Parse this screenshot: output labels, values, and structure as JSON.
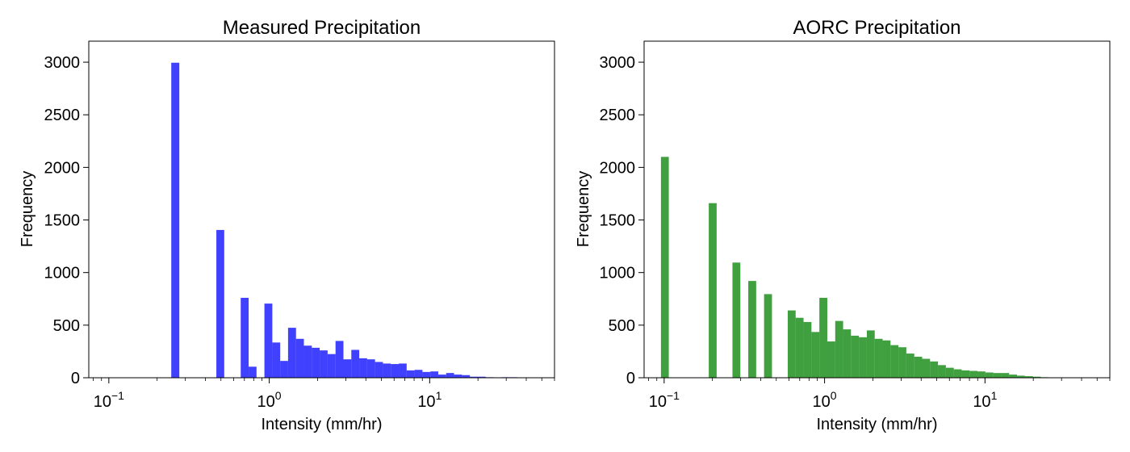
{
  "chart_data": [
    {
      "type": "bar",
      "title": "Measured Precipitation",
      "xlabel": "Intensity (mm/hr)",
      "ylabel": "Frequency",
      "xscale": "log",
      "xlim": [
        0.075,
        60
      ],
      "ylim": [
        0,
        3200
      ],
      "grid": false,
      "color": "#0000ff",
      "x_ticks": [
        {
          "base": "10",
          "exp": "−1",
          "value": 0.1
        },
        {
          "base": "10",
          "exp": "0",
          "value": 1
        },
        {
          "base": "10",
          "exp": "1",
          "value": 10
        }
      ],
      "y_ticks": [
        "0",
        "500",
        "1000",
        "1500",
        "2000",
        "2500",
        "3000"
      ],
      "bins": [
        {
          "x0": 0.245,
          "x1": 0.275,
          "value": 2995
        },
        {
          "x0": 0.468,
          "x1": 0.524,
          "value": 1405
        },
        {
          "x0": 0.664,
          "x1": 0.744,
          "value": 760
        },
        {
          "x0": 0.744,
          "x1": 0.833,
          "value": 105
        },
        {
          "x0": 0.933,
          "x1": 1.045,
          "value": 705
        },
        {
          "x0": 1.045,
          "x1": 1.17,
          "value": 335
        },
        {
          "x0": 1.17,
          "x1": 1.31,
          "value": 160
        },
        {
          "x0": 1.31,
          "x1": 1.468,
          "value": 475
        },
        {
          "x0": 1.468,
          "x1": 1.644,
          "value": 370
        },
        {
          "x0": 1.644,
          "x1": 1.842,
          "value": 305
        },
        {
          "x0": 1.842,
          "x1": 2.063,
          "value": 285
        },
        {
          "x0": 2.063,
          "x1": 2.311,
          "value": 260
        },
        {
          "x0": 2.311,
          "x1": 2.589,
          "value": 225
        },
        {
          "x0": 2.589,
          "x1": 2.9,
          "value": 350
        },
        {
          "x0": 2.9,
          "x1": 3.248,
          "value": 175
        },
        {
          "x0": 3.248,
          "x1": 3.638,
          "value": 265
        },
        {
          "x0": 3.638,
          "x1": 4.075,
          "value": 185
        },
        {
          "x0": 4.075,
          "x1": 4.565,
          "value": 175
        },
        {
          "x0": 4.565,
          "x1": 5.113,
          "value": 150
        },
        {
          "x0": 5.113,
          "x1": 5.727,
          "value": 135
        },
        {
          "x0": 5.727,
          "x1": 6.415,
          "value": 130
        },
        {
          "x0": 6.415,
          "x1": 7.186,
          "value": 135
        },
        {
          "x0": 7.186,
          "x1": 8.049,
          "value": 70
        },
        {
          "x0": 8.049,
          "x1": 9.016,
          "value": 75
        },
        {
          "x0": 9.016,
          "x1": 10.1,
          "value": 55
        },
        {
          "x0": 10.1,
          "x1": 11.31,
          "value": 60
        },
        {
          "x0": 11.31,
          "x1": 12.67,
          "value": 30
        },
        {
          "x0": 12.67,
          "x1": 14.19,
          "value": 45
        },
        {
          "x0": 14.19,
          "x1": 15.9,
          "value": 30
        },
        {
          "x0": 15.9,
          "x1": 17.81,
          "value": 25
        },
        {
          "x0": 17.81,
          "x1": 19.95,
          "value": 10
        },
        {
          "x0": 19.95,
          "x1": 22.35,
          "value": 10
        },
        {
          "x0": 22.35,
          "x1": 25.03,
          "value": 5
        },
        {
          "x0": 28.04,
          "x1": 31.41,
          "value": 5
        },
        {
          "x0": 31.41,
          "x1": 35.18,
          "value": 5
        }
      ]
    },
    {
      "type": "bar",
      "title": "AORC Precipitation",
      "xlabel": "Intensity (mm/hr)",
      "ylabel": "Frequency",
      "xscale": "log",
      "xlim": [
        0.075,
        60
      ],
      "ylim": [
        0,
        3200
      ],
      "grid": false,
      "color": "#008000",
      "x_ticks": [
        {
          "base": "10",
          "exp": "−1",
          "value": 0.1
        },
        {
          "base": "10",
          "exp": "0",
          "value": 1
        },
        {
          "base": "10",
          "exp": "1",
          "value": 10
        }
      ],
      "y_ticks": [
        "0",
        "500",
        "1000",
        "1500",
        "2000",
        "2500",
        "3000"
      ],
      "bins": [
        {
          "x0": 0.0955,
          "x1": 0.1069,
          "value": 2100
        },
        {
          "x0": 0.1897,
          "x1": 0.2125,
          "value": 1660
        },
        {
          "x0": 0.2666,
          "x1": 0.2986,
          "value": 1095
        },
        {
          "x0": 0.3345,
          "x1": 0.3747,
          "value": 920
        },
        {
          "x0": 0.4197,
          "x1": 0.4701,
          "value": 795
        },
        {
          "x0": 0.5895,
          "x1": 0.6603,
          "value": 640
        },
        {
          "x0": 0.6603,
          "x1": 0.7397,
          "value": 570
        },
        {
          "x0": 0.7397,
          "x1": 0.8285,
          "value": 530
        },
        {
          "x0": 0.8285,
          "x1": 0.9281,
          "value": 435
        },
        {
          "x0": 0.9281,
          "x1": 1.04,
          "value": 760
        },
        {
          "x0": 1.04,
          "x1": 1.165,
          "value": 345
        },
        {
          "x0": 1.165,
          "x1": 1.305,
          "value": 540
        },
        {
          "x0": 1.305,
          "x1": 1.461,
          "value": 460
        },
        {
          "x0": 1.461,
          "x1": 1.637,
          "value": 400
        },
        {
          "x0": 1.637,
          "x1": 1.834,
          "value": 385
        },
        {
          "x0": 1.834,
          "x1": 2.054,
          "value": 450
        },
        {
          "x0": 2.054,
          "x1": 2.301,
          "value": 370
        },
        {
          "x0": 2.301,
          "x1": 2.577,
          "value": 355
        },
        {
          "x0": 2.577,
          "x1": 2.887,
          "value": 310
        },
        {
          "x0": 2.887,
          "x1": 3.234,
          "value": 290
        },
        {
          "x0": 3.234,
          "x1": 3.623,
          "value": 230
        },
        {
          "x0": 3.623,
          "x1": 4.058,
          "value": 200
        },
        {
          "x0": 4.058,
          "x1": 4.546,
          "value": 180
        },
        {
          "x0": 4.546,
          "x1": 5.092,
          "value": 155
        },
        {
          "x0": 5.092,
          "x1": 5.704,
          "value": 120
        },
        {
          "x0": 5.704,
          "x1": 6.389,
          "value": 95
        },
        {
          "x0": 6.389,
          "x1": 7.157,
          "value": 80
        },
        {
          "x0": 7.157,
          "x1": 8.017,
          "value": 70
        },
        {
          "x0": 8.017,
          "x1": 8.98,
          "value": 65
        },
        {
          "x0": 8.98,
          "x1": 10.06,
          "value": 60
        },
        {
          "x0": 10.06,
          "x1": 11.27,
          "value": 50
        },
        {
          "x0": 11.27,
          "x1": 12.62,
          "value": 45
        },
        {
          "x0": 12.62,
          "x1": 14.14,
          "value": 45
        },
        {
          "x0": 14.14,
          "x1": 15.84,
          "value": 30
        },
        {
          "x0": 15.84,
          "x1": 17.74,
          "value": 20
        },
        {
          "x0": 17.74,
          "x1": 19.87,
          "value": 15
        },
        {
          "x0": 19.87,
          "x1": 22.26,
          "value": 10
        },
        {
          "x0": 22.26,
          "x1": 24.93,
          "value": 5
        }
      ]
    }
  ]
}
